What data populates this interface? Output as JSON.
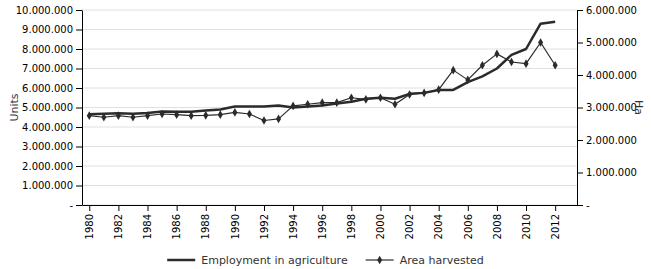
{
  "chart_data": {
    "type": "line",
    "ylabel": "Units",
    "y2label": "Ha",
    "x": [
      1980,
      1981,
      1982,
      1983,
      1984,
      1985,
      1986,
      1987,
      1988,
      1989,
      1990,
      1991,
      1992,
      1993,
      1994,
      1995,
      1996,
      1997,
      1998,
      1999,
      2000,
      2001,
      2002,
      2003,
      2004,
      2005,
      2006,
      2007,
      2008,
      2009,
      2010,
      2011,
      2012
    ],
    "series": [
      {
        "name": "Employment in agriculture",
        "color": "#2b2b2b",
        "marker": "none",
        "line_style": "solid",
        "values": [
          4650000,
          4680000,
          4700000,
          4680000,
          4720000,
          4800000,
          4780000,
          4780000,
          4850000,
          4900000,
          5050000,
          5050000,
          5050000,
          5100000,
          5000000,
          5050000,
          5100000,
          5200000,
          5300000,
          5450000,
          5500000,
          5450000,
          5700000,
          5750000,
          5900000,
          5900000,
          6300000,
          6600000,
          7000000,
          7700000,
          8000000,
          9300000,
          9400000
        ]
      },
      {
        "name": "Area harvested",
        "color": "#2b2b2b",
        "marker": "diamond",
        "line_style": "solid",
        "axis": "y2",
        "values": [
          2750000,
          2700000,
          2750000,
          2700000,
          2750000,
          2800000,
          2780000,
          2750000,
          2760000,
          2780000,
          2850000,
          2800000,
          2600000,
          2650000,
          3050000,
          3100000,
          3150000,
          3150000,
          3300000,
          3250000,
          3300000,
          3100000,
          3400000,
          3450000,
          3550000,
          4150000,
          3850000,
          4300000,
          4650000,
          4400000,
          4350000,
          5000000,
          4300000
        ]
      }
    ],
    "xlim": [
      1979.5,
      2013.5
    ],
    "xticks": [
      1980,
      1982,
      1984,
      1986,
      1988,
      1990,
      1992,
      1994,
      1996,
      1998,
      2000,
      2002,
      2004,
      2006,
      2008,
      2010,
      2012
    ],
    "ylim": [
      0,
      10000000
    ],
    "yticks": [
      {
        "value": 0,
        "label": "-"
      },
      {
        "value": 1000000,
        "label": "1.000.000"
      },
      {
        "value": 2000000,
        "label": "2.000.000"
      },
      {
        "value": 3000000,
        "label": "3.000.000"
      },
      {
        "value": 4000000,
        "label": "4.000.000"
      },
      {
        "value": 5000000,
        "label": "5.000.000"
      },
      {
        "value": 6000000,
        "label": "6.000.000"
      },
      {
        "value": 7000000,
        "label": "7.000.000"
      },
      {
        "value": 8000000,
        "label": "8.000.000"
      },
      {
        "value": 9000000,
        "label": "9.000.000"
      },
      {
        "value": 10000000,
        "label": "10.000.000"
      }
    ],
    "y2lim": [
      0,
      6000000
    ],
    "y2ticks": [
      {
        "value": 0,
        "label": "-"
      },
      {
        "value": 1000000,
        "label": "1.000.000"
      },
      {
        "value": 2000000,
        "label": "2.000.000"
      },
      {
        "value": 3000000,
        "label": "3.000.000"
      },
      {
        "value": 4000000,
        "label": "4.000.000"
      },
      {
        "value": 5000000,
        "label": "5.000.000"
      },
      {
        "value": 6000000,
        "label": "6.000.000"
      }
    ],
    "grid": true,
    "legend": "bottom"
  }
}
